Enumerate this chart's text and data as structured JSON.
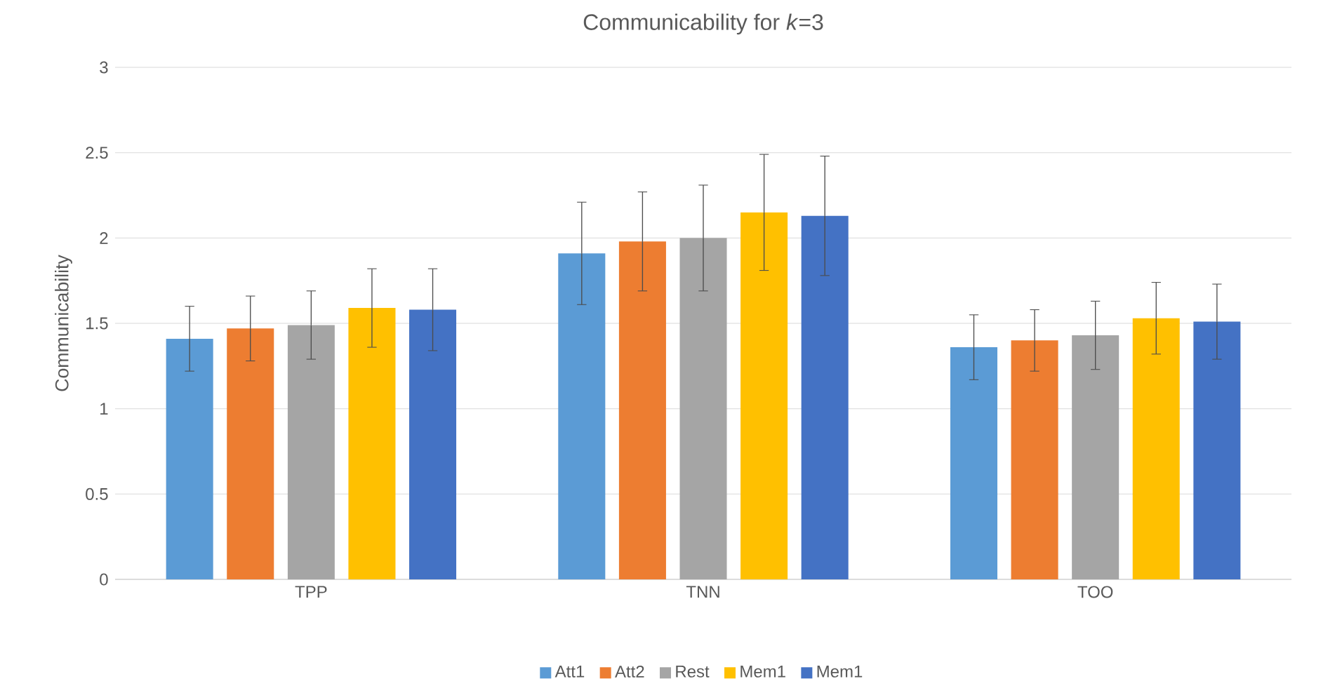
{
  "chart_data": {
    "type": "bar",
    "title": "Communicability for *k*=3",
    "ylabel": "Communicability",
    "categories": [
      "TPP",
      "TNN",
      "TOO"
    ],
    "series": [
      {
        "name": "Att1",
        "color": "#5b9bd5",
        "values": [
          1.41,
          1.91,
          1.36
        ],
        "errors": [
          0.19,
          0.3,
          0.19
        ]
      },
      {
        "name": "Att2",
        "color": "#ed7d31",
        "values": [
          1.47,
          1.98,
          1.4
        ],
        "errors": [
          0.19,
          0.29,
          0.18
        ]
      },
      {
        "name": "Rest",
        "color": "#a5a5a5",
        "values": [
          1.49,
          2.0,
          1.43
        ],
        "errors": [
          0.2,
          0.31,
          0.2
        ]
      },
      {
        "name": "Mem1",
        "color": "#ffc000",
        "values": [
          1.59,
          2.15,
          1.53
        ],
        "errors": [
          0.23,
          0.34,
          0.21
        ]
      },
      {
        "name": "Mem1",
        "color": "#4472c4",
        "values": [
          1.58,
          2.13,
          1.51
        ],
        "errors": [
          0.24,
          0.35,
          0.22
        ]
      }
    ],
    "ylim": [
      0,
      3
    ],
    "yticks": [
      0,
      0.5,
      1,
      1.5,
      2,
      2.5,
      3
    ],
    "grid": "y",
    "legend": "bottom"
  }
}
